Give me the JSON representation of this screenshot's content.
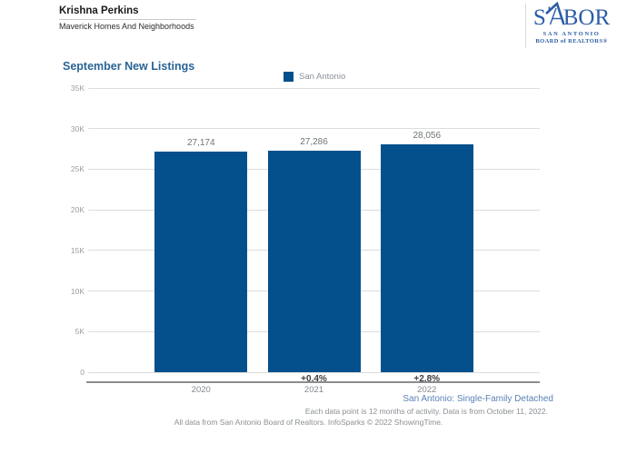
{
  "header": {
    "agent_name": "Krishna Perkins",
    "agency": "Maverick Homes And Neighborhoods"
  },
  "logo": {
    "name": "SABOR logo",
    "acronym_left": "S",
    "acronym_right": "BOR",
    "line1": "SAN ANTONIO",
    "line2": "BOARD of REALTORS®"
  },
  "chart_data": {
    "type": "bar",
    "title": "September New Listings",
    "legend": [
      {
        "label": "San Antonio"
      }
    ],
    "legend_position": "top-center",
    "categories": [
      "2020",
      "2021",
      "2022"
    ],
    "series": [
      {
        "name": "San Antonio",
        "values": [
          27174,
          27286,
          28056
        ]
      }
    ],
    "value_labels": [
      "27,174",
      "27,286",
      "28,056"
    ],
    "pct_change_labels": [
      "",
      "+0.4%",
      "+2.8%"
    ],
    "ylabel": "",
    "xlabel": "",
    "ylim": [
      0,
      35000
    ],
    "ytick_step": 5000,
    "ytick_labels": [
      "0",
      "5K",
      "10K",
      "15K",
      "20K",
      "25K",
      "30K",
      "35K"
    ],
    "grid": true
  },
  "footer": {
    "segment_label": "San Antonio: Single-Family Detached",
    "data_note": "Each data point is 12 months of activity. Data is from October 11, 2022.",
    "attribution": "All data from San Antonio Board of Realtors. InfoSparks © 2022 ShowingTime."
  },
  "colors": {
    "bar": "#03508c",
    "title": "#2a6496",
    "logo": "#2b5ca8",
    "footer_link": "#5b82b6",
    "grid": "#dddddd",
    "axis": "#8c8c8c"
  }
}
